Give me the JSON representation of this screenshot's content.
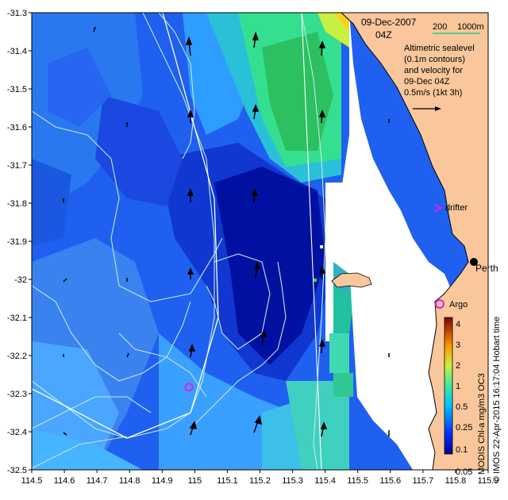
{
  "map": {
    "date": "09-Dec-2007",
    "time": "04Z",
    "scale_labels": [
      "200",
      "1000m"
    ],
    "legend_lines": [
      "Altimetric sealevel",
      "(0.1m contours)",
      "and velocity for",
      "09-Dec 04Z"
    ],
    "velocity_scale": "0.5m/s (1kt 3h)",
    "place_labels": {
      "city": "Perth",
      "drifter": "drifter",
      "argo": "Argo"
    },
    "credit": "© IMOS 22-Apr-2015 16:17:04 Hobart time",
    "colorbar_title": "MODIS Chl-a mg/m3 OC3",
    "colorbar_ticks": [
      "4",
      "3",
      "2",
      "1",
      "0.5",
      "0.25",
      "0.1",
      "0.05"
    ],
    "x_ticks": [
      "114.5",
      "114.6",
      "114.7",
      "114.8",
      "114.9",
      "115",
      "115.1",
      "115.2",
      "115.3",
      "115.4",
      "115.5",
      "115.6",
      "115.7",
      "115.8",
      "115.9"
    ],
    "y_ticks": [
      "-31.3",
      "-31.4",
      "-31.5",
      "-31.6",
      "-31.7",
      "-31.8",
      "-31.9",
      "-32",
      "-32.1",
      "-32.2",
      "-32.3",
      "-32.4",
      "-32.5"
    ],
    "colors": {
      "land": "#f9c79b",
      "contour": "#bfe8e8",
      "scalebar": "#30c890",
      "drifter": "#e020e0",
      "argo": "#e020e0"
    }
  }
}
